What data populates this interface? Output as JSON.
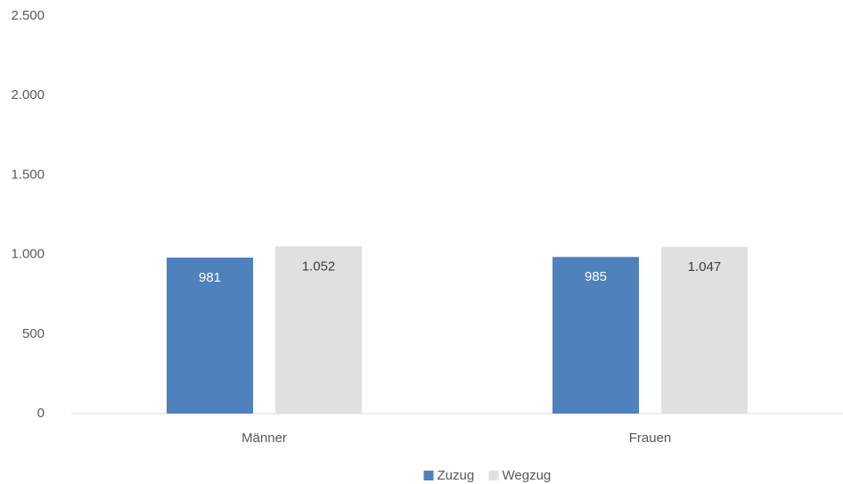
{
  "chart_data": {
    "type": "bar",
    "categories": [
      "Männer",
      "Frauen"
    ],
    "series": [
      {
        "name": "Zuzug",
        "color": "#4f81bd",
        "values": [
          981,
          985
        ],
        "value_labels": [
          "981",
          "985"
        ]
      },
      {
        "name": "Wegzug",
        "color": "#e0e0e0",
        "values": [
          1052,
          1047
        ],
        "value_labels": [
          "1.052",
          "1.047"
        ]
      }
    ],
    "ylim": [
      0,
      2500
    ],
    "yticks": [
      0,
      500,
      {
        "value": 1000,
        "label": "1.000"
      },
      {
        "value": 1500,
        "label": "1.500"
      },
      {
        "value": 2000,
        "label": "2.000"
      },
      {
        "value": 2500,
        "label": "2.500"
      }
    ],
    "grid": false,
    "legend": "bottom"
  }
}
